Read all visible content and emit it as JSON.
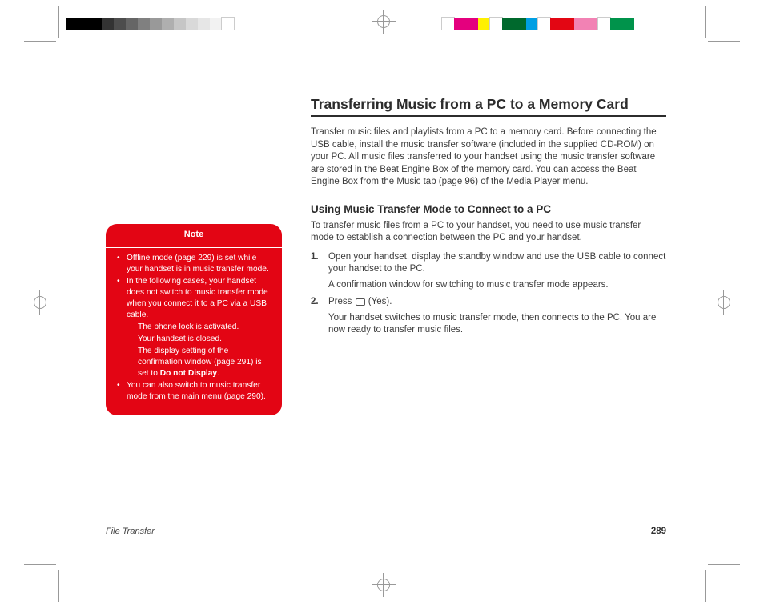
{
  "swatch_left_colors": [
    "#000000",
    "#000000",
    "#000000",
    "#333333",
    "#4d4d4d",
    "#666666",
    "#808080",
    "#999999",
    "#afafaf",
    "#c6c6c6",
    "#d9d9d9",
    "#e6e6e6",
    "#f2f2f2",
    "#ffffff"
  ],
  "swatch_right_colors": [
    "#ffffff",
    "#e4007e",
    "#e4007e",
    "#fff000",
    "#ffffff",
    "#00692d",
    "#00692d",
    "#009fe3",
    "#ffffff",
    "#e30613",
    "#e30613",
    "#f282b4",
    "#f282b4",
    "#ffffff",
    "#00934b",
    "#00934b"
  ],
  "note": {
    "title": "Note",
    "items": [
      "Offline mode (page 229) is set while your handset is in music transfer mode.",
      "In the following cases, your handset does not switch to music transfer mode when you connect it to a PC via a USB cable.",
      "You can also switch to music transfer mode from the main menu (page 290)."
    ],
    "sub_items": [
      "The phone lock is activated.",
      "Your handset is closed.",
      "The display setting of the confirmation window (page 291) is set to"
    ],
    "sub_bold": "Do not Display"
  },
  "title": "Transferring Music from a PC to a Memory Card",
  "intro": "Transfer music files and playlists from a PC to a memory card. Before connecting the USB cable, install the music transfer software (included in the supplied CD-ROM) on your PC. All music files transferred to your handset using the music transfer software are stored in the Beat Engine Box of the memory card. You can access the Beat Engine Box from the Music tab (page 96) of the Media Player menu.",
  "h2": "Using Music Transfer Mode to Connect to a PC",
  "h2_intro": "To transfer music files from a PC to your handset, you need to use music transfer mode to establish a connection between the PC and your handset.",
  "steps": {
    "s1a": "Open your handset, display the standby window and use the USB cable to connect your handset to the PC.",
    "s1b": "A confirmation window for switching to music transfer mode appears.",
    "s2a_pre": "Press ",
    "s2a_post": " (Yes).",
    "s2b": "Your handset switches to music transfer mode, then connects to the PC. You are now ready to transfer music files."
  },
  "footer": {
    "section": "File Transfer",
    "page": "289"
  }
}
